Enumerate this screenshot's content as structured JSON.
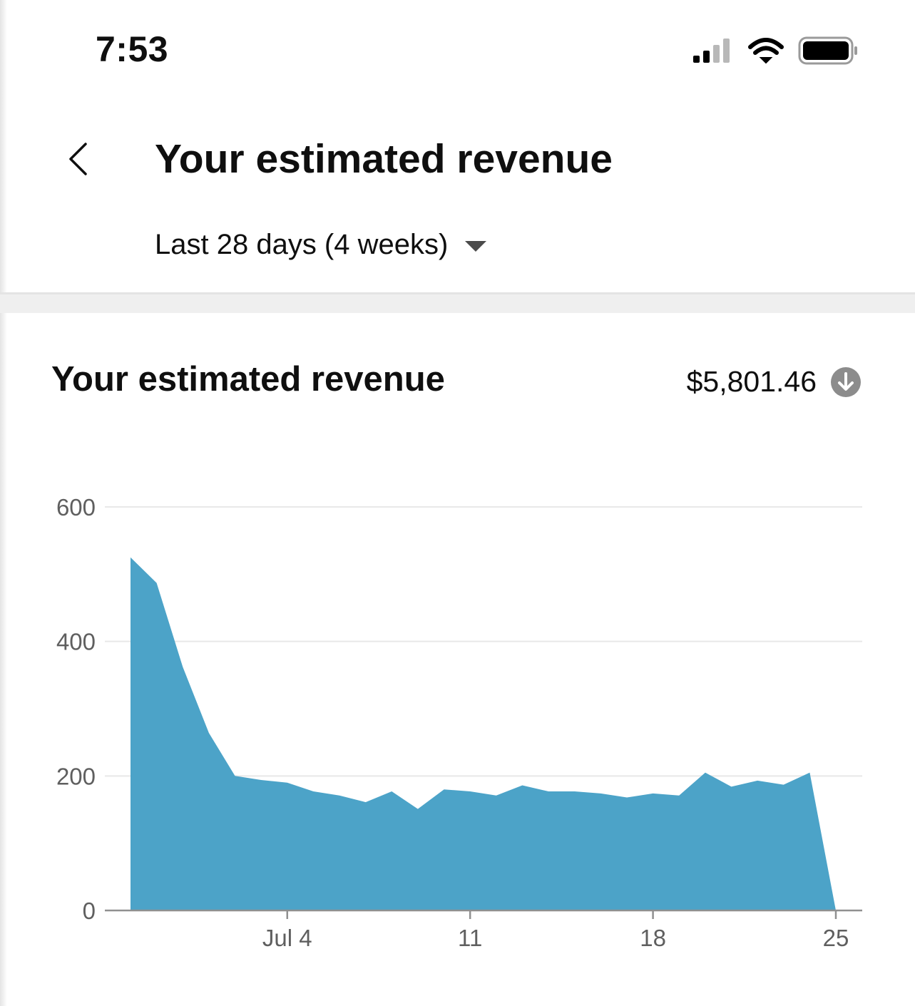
{
  "status_bar": {
    "time": "7:53",
    "icons": [
      "cellular-signal-icon",
      "wifi-icon",
      "battery-icon"
    ]
  },
  "header": {
    "back_icon": "chevron-left-icon",
    "title": "Your estimated revenue",
    "period": {
      "selected": "Last 28 days (4 weeks)",
      "caret_icon": "caret-down-icon"
    }
  },
  "card": {
    "title": "Your estimated revenue",
    "total": "$5,801.46",
    "total_icon": "arrow-down-circle-icon"
  },
  "colors": {
    "area_fill": "#4ca3c8",
    "gridline": "#e8e8e8",
    "axis": "#909090",
    "tick_text": "#5f5f5f"
  },
  "chart_data": {
    "type": "area",
    "title": "",
    "xlabel": "",
    "ylabel": "",
    "x": [
      "Jun 28",
      "Jun 29",
      "Jun 30",
      "Jul 1",
      "Jul 2",
      "Jul 3",
      "Jul 4",
      "Jul 5",
      "Jul 6",
      "Jul 7",
      "Jul 8",
      "Jul 9",
      "Jul 10",
      "Jul 11",
      "Jul 12",
      "Jul 13",
      "Jul 14",
      "Jul 15",
      "Jul 16",
      "Jul 17",
      "Jul 18",
      "Jul 19",
      "Jul 20",
      "Jul 21",
      "Jul 22",
      "Jul 23",
      "Jul 24",
      "Jul 25"
    ],
    "values": [
      525,
      487,
      362,
      264,
      200,
      194,
      190,
      177,
      171,
      161,
      177,
      151,
      180,
      177,
      171,
      186,
      177,
      177,
      174,
      168,
      174,
      171,
      205,
      184,
      193,
      187,
      205,
      0
    ],
    "ylim": [
      0,
      600
    ],
    "yticks": [
      0,
      200,
      400,
      600
    ],
    "ytick_labels": [
      "0",
      "200",
      "400",
      "600"
    ],
    "xticks": [
      {
        "at": "Jul 4",
        "label": "Jul 4"
      },
      {
        "at": "Jul 11",
        "label": "11"
      },
      {
        "at": "Jul 18",
        "label": "18"
      },
      {
        "at": "Jul 25",
        "label": "25"
      }
    ],
    "grid": true,
    "legend": "none"
  }
}
